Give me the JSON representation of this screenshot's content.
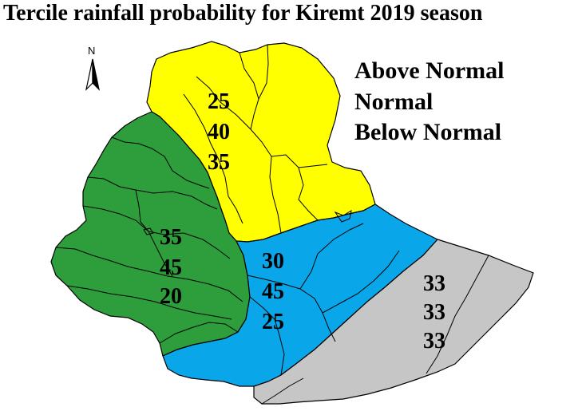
{
  "title": "Tercile rainfall probability for Kiremt  2019 season",
  "legend": {
    "lines": [
      "Above Normal",
      "Normal",
      "Below Normal"
    ]
  },
  "north_arrow": {
    "label": "N",
    "icon": "north-arrow-icon"
  },
  "zones": {
    "north_east": {
      "color": "#ffff00",
      "above_normal": "25",
      "normal": "40",
      "below_normal": "35"
    },
    "west": {
      "color": "#2e9e3c",
      "above_normal": "35",
      "normal": "45",
      "below_normal": "20"
    },
    "south_central": {
      "color": "#0aa6ea",
      "above_normal": "30",
      "normal": "45",
      "below_normal": "25"
    },
    "south_east": {
      "color": "#c6c6c6",
      "above_normal": "33",
      "normal": "33",
      "below_normal": "33"
    }
  }
}
